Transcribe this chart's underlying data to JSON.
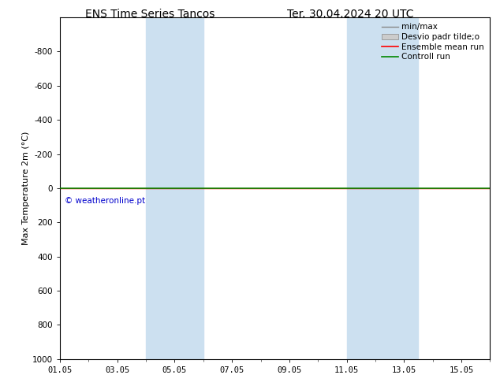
{
  "title_left": "ENS Time Series Tancos",
  "title_right": "Ter. 30.04.2024 20 UTC",
  "ylabel": "Max Temperature 2m (°C)",
  "xlim": [
    0,
    15
  ],
  "ylim_top": -1000,
  "ylim_bottom": 1000,
  "yticks": [
    -800,
    -600,
    -400,
    -200,
    0,
    200,
    400,
    600,
    800,
    1000
  ],
  "xtick_labels": [
    "01.05",
    "03.05",
    "05.05",
    "07.05",
    "09.05",
    "11.05",
    "13.05",
    "15.05"
  ],
  "xtick_positions": [
    0,
    2,
    4,
    6,
    8,
    10,
    12,
    14
  ],
  "shaded_bands": [
    {
      "xstart": 3.0,
      "xend": 5.0
    },
    {
      "xstart": 10.0,
      "xend": 12.5
    }
  ],
  "green_line_y": 0,
  "red_line_y": 0,
  "background_color": "#ffffff",
  "shade_color": "#cce0f0",
  "green_line_color": "#008800",
  "red_line_color": "#ff0000",
  "copyright_text": "© weatheronline.pt",
  "copyright_color": "#0000cc",
  "legend_entries": [
    "min/max",
    "Desvio padr tilde;o",
    "Ensemble mean run",
    "Controll run"
  ],
  "font_size_title": 10,
  "font_size_axis": 8,
  "font_size_tick": 7.5,
  "font_size_legend": 7.5,
  "font_size_copyright": 7.5
}
